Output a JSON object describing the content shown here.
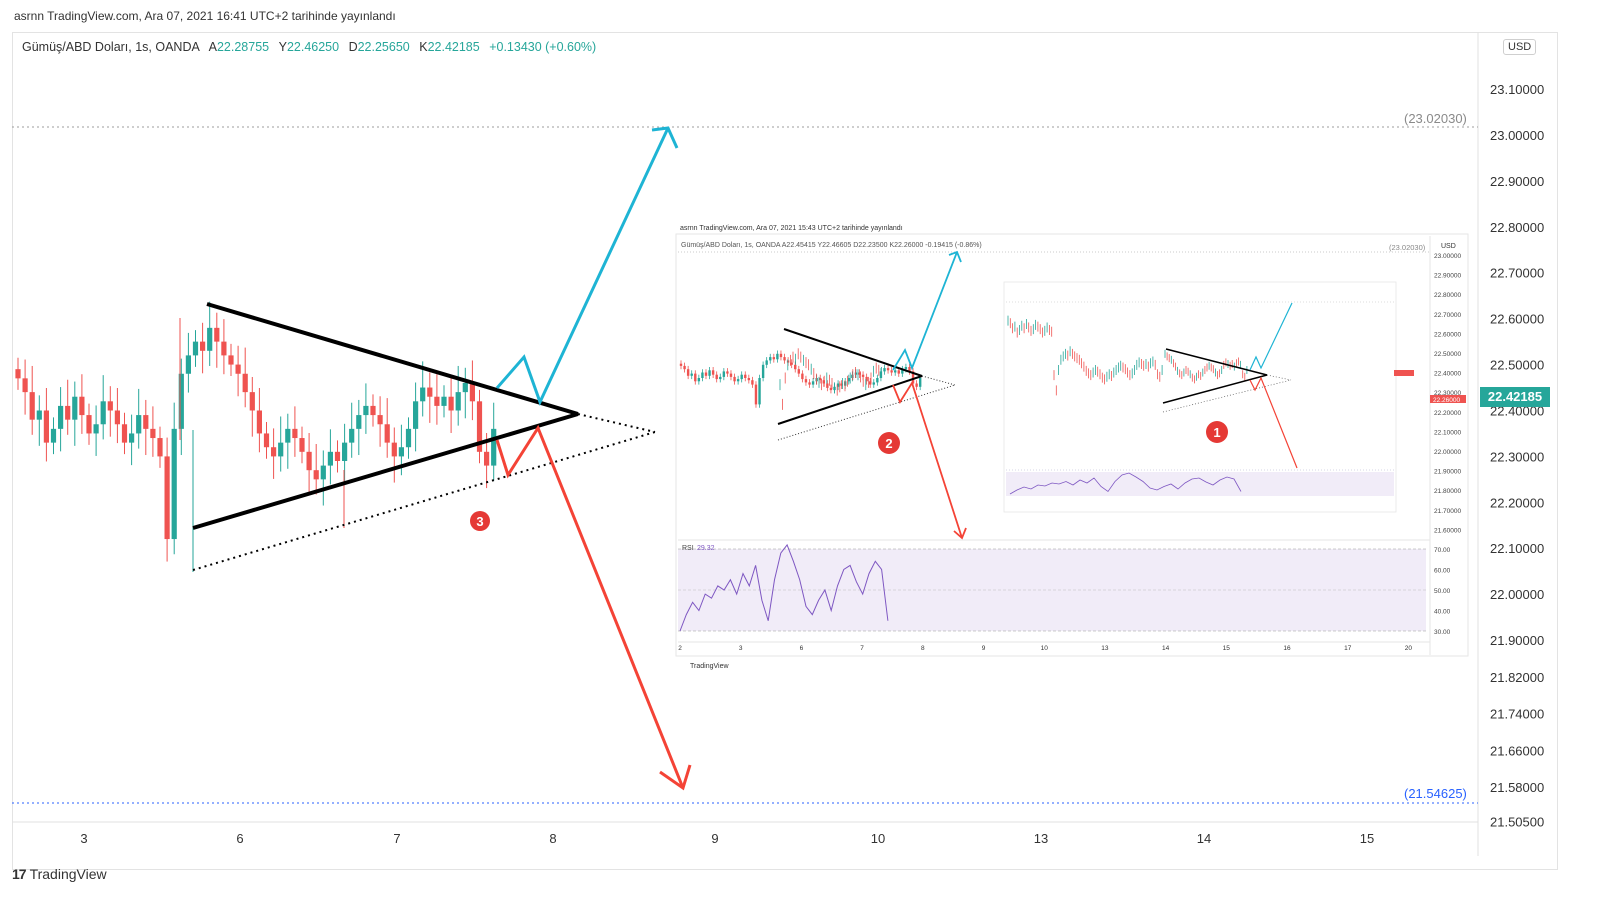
{
  "publish_line": "asrnn TradingView.com, Ara 07, 2021 16:41 UTC+2 tarihinde yayınlandı",
  "legend": {
    "symbol": "Gümüş/ABD Doları, 1s, OANDA",
    "A_label": "A",
    "A": "22.28755",
    "Y_label": "Y",
    "Y": "22.46250",
    "D_label": "D",
    "D": "22.25650",
    "K_label": "K",
    "K": "22.42185",
    "change": "+0.13430 (+0.60%)"
  },
  "currency": "USD",
  "last_price": "22.42185",
  "hline_top": "(23.02030)",
  "hline_bottom": "(21.54625)",
  "badge_main": "3",
  "footer_brand": "TradingView",
  "footer_logo": "17",
  "colors": {
    "up": "#26a69a",
    "down": "#ef5350",
    "breakout_up": "#1eb4d4",
    "breakout_down": "#f44336",
    "badge": "#e53935"
  },
  "inset2": {
    "publish_line": "asrnn TradingView.com, Ara 07, 2021 15:43 UTC+2 tarihinde yayınlandı",
    "legend": "Gümüş/ABD Doları, 1s, OANDA  A22.45415  Y22.46605  D22.23500  K22.26000  -0.19415 (-0.86%)",
    "hline": "(23.02030)",
    "currency": "USD",
    "last_price": "22.26000",
    "badge": "2",
    "rsi_label": "RSI",
    "rsi_value": "29.32",
    "brand": "TradingView",
    "yticks": [
      "23.00000",
      "22.90000",
      "22.80000",
      "22.70000",
      "22.60000",
      "22.50000",
      "22.40000",
      "22.30000",
      "22.20000",
      "22.10000",
      "22.00000",
      "21.90000",
      "21.80000",
      "21.70000",
      "21.60000"
    ],
    "rsi_ticks": [
      "70.00",
      "60.00",
      "50.00",
      "40.00",
      "30.00"
    ],
    "xticks": [
      "2",
      "3",
      "6",
      "7",
      "8",
      "9",
      "10",
      "13",
      "14",
      "15",
      "16",
      "17",
      "20"
    ]
  },
  "inset1": {
    "badge": "1"
  },
  "chart_data": {
    "type": "candlestick",
    "title": "",
    "symbol": "Gümüş/ABD Doları, 1s, OANDA",
    "xlabel": "",
    "ylabel": "",
    "x_ticks": [
      "3",
      "6",
      "7",
      "8",
      "9",
      "10",
      "13",
      "14",
      "15"
    ],
    "y_ticks": [
      "23.10000",
      "23.00000",
      "22.90000",
      "22.80000",
      "22.70000",
      "22.60000",
      "22.50000",
      "22.40000",
      "22.30000",
      "22.20000",
      "22.10000",
      "22.00000",
      "21.90000",
      "21.82000",
      "21.74000",
      "21.66000",
      "21.58000",
      "21.50500"
    ],
    "ylim": [
      21.5,
      23.16
    ],
    "horizontal_lines": [
      23.0203,
      21.54625
    ],
    "close_series": [
      22.47,
      22.44,
      22.38,
      22.4,
      22.33,
      22.36,
      22.41,
      22.38,
      22.43,
      22.39,
      22.35,
      22.37,
      22.42,
      22.4,
      22.37,
      22.33,
      22.35,
      22.39,
      22.36,
      22.34,
      22.3,
      22.12,
      22.36,
      22.48,
      22.52,
      22.55,
      22.53,
      22.58,
      22.55,
      22.52,
      22.5,
      22.48,
      22.44,
      22.4,
      22.35,
      22.32,
      22.3,
      22.33,
      22.36,
      22.34,
      22.31,
      22.27,
      22.25,
      22.28,
      22.31,
      22.29,
      22.33,
      22.36,
      22.39,
      22.41,
      22.39,
      22.37,
      22.33,
      22.3,
      22.32,
      22.36,
      22.42,
      22.45,
      22.43,
      22.41,
      22.43,
      22.4,
      22.44,
      22.46,
      22.42,
      22.31,
      22.28,
      22.36
    ],
    "patterns": [
      {
        "type": "triangle",
        "upper": [
          [
            "Ara 6",
            22.65
          ],
          [
            "Ara 8",
            22.38
          ]
        ],
        "lower": [
          [
            "Ara 5",
            22.14
          ],
          [
            "Ara 8",
            22.38
          ]
        ]
      },
      {
        "type": "projection_up",
        "target": 23.02
      },
      {
        "type": "projection_down",
        "target": 21.56
      }
    ]
  }
}
